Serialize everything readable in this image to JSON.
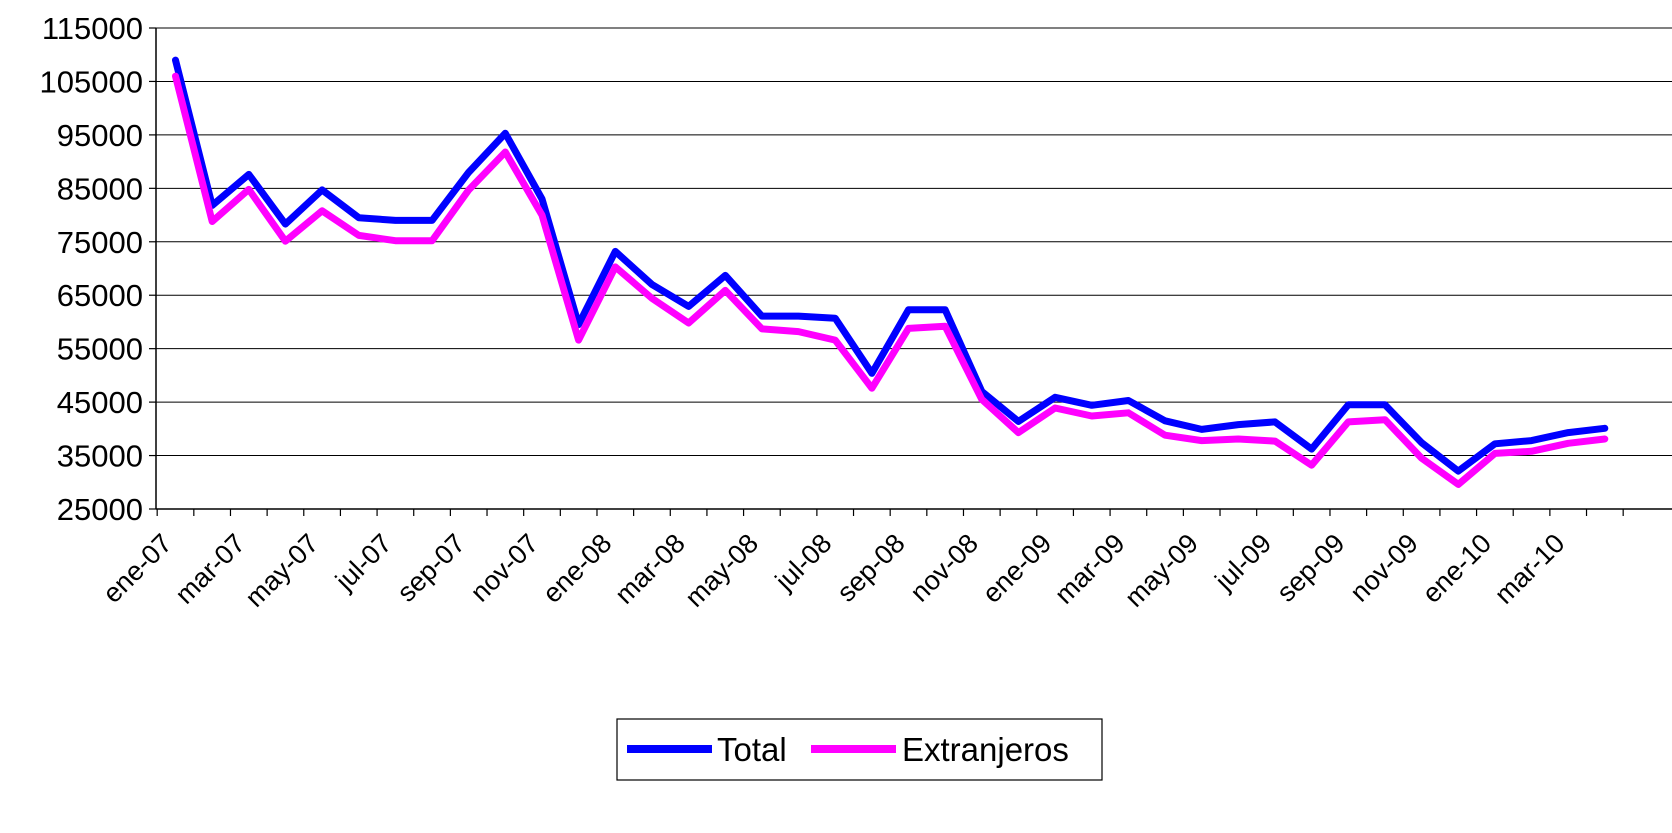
{
  "chart_data": {
    "type": "line",
    "title": "",
    "xlabel": "",
    "ylabel": "",
    "ylim": [
      25000,
      115000
    ],
    "y_ticks": [
      "25000",
      "35000",
      "45000",
      "55000",
      "65000",
      "75000",
      "85000",
      "95000",
      "105000",
      "115000"
    ],
    "x": [
      "ene-07",
      "feb-07",
      "mar-07",
      "abr-07",
      "may-07",
      "jun-07",
      "jul-07",
      "ago-07",
      "sep-07",
      "oct-07",
      "nov-07",
      "dic-07",
      "ene-08",
      "feb-08",
      "mar-08",
      "abr-08",
      "may-08",
      "jun-08",
      "jul-08",
      "ago-08",
      "sep-08",
      "oct-08",
      "nov-08",
      "dic-08",
      "ene-09",
      "feb-09",
      "mar-09",
      "abr-09",
      "may-09",
      "jun-09",
      "jul-09",
      "ago-09",
      "sep-09",
      "oct-09",
      "nov-09",
      "dic-09",
      "ene-10",
      "feb-10",
      "mar-10",
      "abr-10"
    ],
    "x_tick_labels": [
      "ene-07",
      "mar-07",
      "may-07",
      "jul-07",
      "sep-07",
      "nov-07",
      "ene-08",
      "mar-08",
      "may-08",
      "jul-08",
      "sep-08",
      "nov-08",
      "ene-09",
      "mar-09",
      "may-09",
      "jul-09",
      "sep-09",
      "nov-09",
      "ene-10",
      "mar-10"
    ],
    "series": [
      {
        "name": "Total",
        "color": "#0000FF",
        "values": [
          109000,
          81800,
          87600,
          78300,
          84700,
          79500,
          79000,
          79000,
          88000,
          95300,
          83000,
          59500,
          73200,
          67000,
          62900,
          68700,
          61100,
          61100,
          60700,
          50400,
          62300,
          62300,
          47000,
          41400,
          45900,
          44400,
          45300,
          41500,
          39900,
          40800,
          41300,
          36200,
          44500,
          44500,
          37400,
          32100,
          37200,
          37800,
          39300,
          40100
        ]
      },
      {
        "name": "Extranjeros",
        "color": "#FF00FF",
        "values": [
          106000,
          78800,
          84800,
          75100,
          80800,
          76200,
          75200,
          75200,
          84700,
          91800,
          80000,
          56600,
          70300,
          64400,
          59800,
          65900,
          58700,
          58200,
          56600,
          47600,
          58800,
          59200,
          45500,
          39300,
          43900,
          42400,
          43000,
          38800,
          37800,
          38100,
          37700,
          33200,
          41300,
          41700,
          34500,
          29600,
          35400,
          35800,
          37300,
          38100
        ]
      }
    ],
    "grid": true,
    "legend": "bottom-center"
  }
}
